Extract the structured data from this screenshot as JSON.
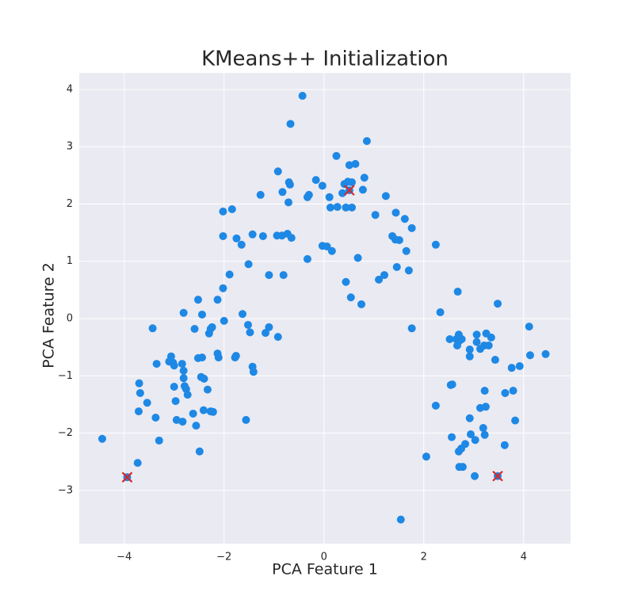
{
  "chart_data": {
    "type": "scatter",
    "title": "KMeans++ Initialization",
    "xlabel": "PCA Feature 1",
    "ylabel": "PCA Feature 2",
    "xlim": [
      -4.9,
      4.94
    ],
    "ylim": [
      -3.93,
      4.29
    ],
    "xticks": [
      {
        "value": -4,
        "label": "−4"
      },
      {
        "value": -2,
        "label": "−2"
      },
      0,
      2,
      4
    ],
    "yticks": [
      {
        "value": -3,
        "label": "−3"
      },
      {
        "value": -2,
        "label": "−2"
      },
      {
        "value": -1,
        "label": "−1"
      },
      0,
      1,
      2,
      3,
      4
    ],
    "grid": true,
    "background": "#eaeaf2",
    "series": [
      {
        "color": "#1e88e5",
        "marker": "o",
        "x": [
          -4.44,
          -3.73,
          -3.43,
          -3.35,
          -3.7,
          -3.68,
          -3.54,
          -3.71,
          -3.37,
          -3.3,
          -3.06,
          -3.1,
          -3.02,
          -3.0,
          -2.84,
          -2.81,
          -2.81,
          -2.79,
          -2.76,
          -2.73,
          -3.0,
          -2.97,
          -2.95,
          -2.83,
          -2.62,
          -2.56,
          -2.81,
          -2.52,
          -2.59,
          -2.44,
          -2.3,
          -2.27,
          -2.24,
          -2.52,
          -2.44,
          -2.46,
          -2.4,
          -2.33,
          -2.41,
          -2.27,
          -2.22,
          -2.49,
          -2.13,
          -2.02,
          -1.89,
          -2.11,
          -2.13,
          -2.0,
          -1.78,
          -1.76,
          -1.63,
          -1.52,
          -1.48,
          -1.43,
          -1.41,
          -1.56,
          -2.02,
          -1.84,
          -2.02,
          -1.75,
          -1.65,
          -1.43,
          -1.22,
          -1.51,
          -1.27,
          -0.92,
          -0.68,
          -0.83,
          -0.71,
          -0.7,
          -0.67,
          -0.43,
          -0.94,
          -0.84,
          -0.73,
          -0.65,
          -1.1,
          -0.81,
          -1.1,
          -1.17,
          -0.92,
          -0.33,
          -0.33,
          -0.3,
          -0.16,
          -0.03,
          -0.03,
          0.06,
          0.16,
          0.13,
          0.11,
          0.25,
          0.27,
          0.37,
          0.44,
          0.41,
          0.48,
          0.51,
          0.63,
          0.56,
          0.56,
          0.44,
          0.54,
          0.75,
          0.68,
          0.78,
          0.81,
          0.86,
          1.03,
          1.24,
          1.1,
          1.21,
          1.37,
          1.43,
          1.44,
          1.51,
          1.46,
          1.62,
          1.65,
          1.7,
          1.76,
          1.76,
          2.24,
          2.33,
          2.68,
          2.52,
          2.7,
          2.65,
          2.71,
          2.67,
          2.71,
          2.76,
          2.57,
          2.54,
          2.24,
          2.56,
          2.7,
          2.75,
          2.83,
          2.71,
          2.78,
          2.94,
          2.92,
          3.03,
          3.13,
          3.24,
          3.22,
          3.19,
          3.22,
          3.06,
          3.06,
          3.13,
          3.21,
          3.25,
          3.3,
          3.35,
          2.92,
          2.92,
          3.43,
          3.48,
          3.63,
          3.79,
          3.83,
          3.62,
          3.76,
          3.92,
          4.11,
          4.13,
          4.44,
          3.02,
          2.05,
          1.54,
          -3.94,
          3.48,
          0.51
        ],
        "values": [
          -2.1,
          -2.52,
          -0.17,
          -0.79,
          -1.13,
          -1.3,
          -1.47,
          -1.62,
          -1.73,
          -2.13,
          -0.66,
          -0.75,
          -0.77,
          -0.82,
          -0.79,
          -0.91,
          -1.04,
          -1.18,
          -1.23,
          -1.33,
          -1.19,
          -1.44,
          -1.77,
          -1.8,
          -1.66,
          -1.87,
          0.1,
          0.33,
          -0.18,
          0.07,
          -0.26,
          -0.18,
          -0.15,
          -0.69,
          -0.68,
          -1.02,
          -1.05,
          -1.24,
          -1.6,
          -1.62,
          -1.63,
          -2.32,
          0.33,
          0.53,
          0.77,
          -0.68,
          -0.61,
          -0.04,
          -0.68,
          -0.65,
          0.08,
          -0.11,
          -0.24,
          -0.84,
          -0.93,
          -1.77,
          1.87,
          1.91,
          1.44,
          1.4,
          1.29,
          1.47,
          1.44,
          0.95,
          2.16,
          2.57,
          2.34,
          2.21,
          2.03,
          2.38,
          3.4,
          3.89,
          1.45,
          1.45,
          1.48,
          1.41,
          0.76,
          0.76,
          -0.15,
          -0.25,
          -0.32,
          1.04,
          2.12,
          2.16,
          2.42,
          2.32,
          1.27,
          1.26,
          1.18,
          1.94,
          2.12,
          2.84,
          1.95,
          2.19,
          1.94,
          2.35,
          2.39,
          2.68,
          2.7,
          1.94,
          2.38,
          0.64,
          0.37,
          0.25,
          1.06,
          2.25,
          2.46,
          3.1,
          1.81,
          2.14,
          0.68,
          0.76,
          1.44,
          1.38,
          1.85,
          1.37,
          0.9,
          1.74,
          1.18,
          0.84,
          1.58,
          -0.17,
          1.29,
          0.11,
          0.47,
          -0.36,
          -0.28,
          -0.36,
          -0.39,
          -0.47,
          -0.32,
          -0.36,
          -1.15,
          -1.16,
          -1.52,
          -2.07,
          -2.32,
          -2.27,
          -2.19,
          -2.59,
          -2.59,
          -2.02,
          -1.74,
          -2.12,
          -1.56,
          -1.54,
          -1.26,
          -1.91,
          -2.03,
          -0.28,
          -0.41,
          -0.53,
          -0.47,
          -0.26,
          -0.47,
          -0.33,
          -0.54,
          -0.66,
          -0.72,
          0.26,
          -1.3,
          -1.26,
          -1.78,
          -2.21,
          -0.86,
          -0.83,
          -0.14,
          -0.64,
          -0.62,
          -2.75,
          -2.41,
          -3.51,
          -2.77,
          -2.75,
          2.24
        ]
      },
      {
        "color": "#d62728",
        "marker": "x",
        "x": [
          -3.94,
          0.51,
          3.48
        ],
        "values": [
          -2.77,
          2.24,
          -2.75
        ]
      }
    ]
  }
}
